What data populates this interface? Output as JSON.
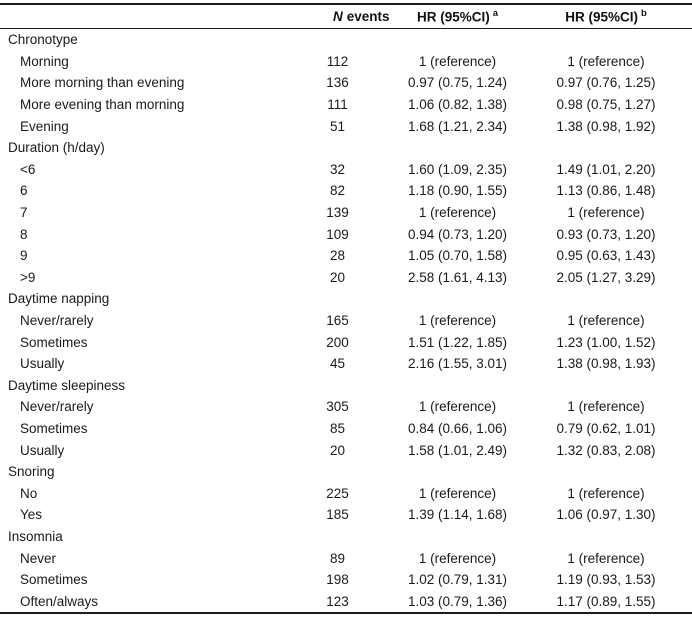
{
  "table": {
    "header": {
      "n_italic": "N",
      "n_rest": "events",
      "hr_label": "HR (95%CI)",
      "sup_a": "a",
      "sup_b": "b"
    },
    "sections": [
      {
        "label": "Chronotype",
        "rows": [
          {
            "label": "Morning",
            "n": "112",
            "hr_a": "1 (reference)",
            "hr_b": "1 (reference)"
          },
          {
            "label": "More morning than evening",
            "n": "136",
            "hr_a": "0.97 (0.75, 1.24)",
            "hr_b": "0.97 (0.76, 1.25)"
          },
          {
            "label": "More evening than morning",
            "n": "111",
            "hr_a": "1.06 (0.82, 1.38)",
            "hr_b": "0.98 (0.75, 1.27)"
          },
          {
            "label": "Evening",
            "n": "51",
            "hr_a": "1.68 (1.21, 2.34)",
            "hr_b": "1.38 (0.98, 1.92)"
          }
        ]
      },
      {
        "label": "Duration (h/day)",
        "rows": [
          {
            "label": "<6",
            "n": "32",
            "hr_a": "1.60 (1.09, 2.35)",
            "hr_b": "1.49 (1.01, 2.20)"
          },
          {
            "label": "6",
            "n": "82",
            "hr_a": "1.18 (0.90, 1.55)",
            "hr_b": "1.13 (0.86, 1.48)"
          },
          {
            "label": "7",
            "n": "139",
            "hr_a": "1 (reference)",
            "hr_b": "1 (reference)"
          },
          {
            "label": "8",
            "n": "109",
            "hr_a": "0.94 (0.73, 1.20)",
            "hr_b": "0.93 (0.73, 1.20)"
          },
          {
            "label": "9",
            "n": "28",
            "hr_a": "1.05 (0.70, 1.58)",
            "hr_b": "0.95 (0.63, 1.43)"
          },
          {
            "label": ">9",
            "n": "20",
            "hr_a": "2.58 (1.61, 4.13)",
            "hr_b": "2.05 (1.27, 3.29)"
          }
        ]
      },
      {
        "label": "Daytime napping",
        "rows": [
          {
            "label": "Never/rarely",
            "n": "165",
            "hr_a": "1 (reference)",
            "hr_b": "1 (reference)"
          },
          {
            "label": "Sometimes",
            "n": "200",
            "hr_a": "1.51 (1.22, 1.85)",
            "hr_b": "1.23 (1.00, 1.52)"
          },
          {
            "label": "Usually",
            "n": "45",
            "hr_a": "2.16 (1.55, 3.01)",
            "hr_b": "1.38 (0.98, 1.93)"
          }
        ]
      },
      {
        "label": "Daytime sleepiness",
        "rows": [
          {
            "label": "Never/rarely",
            "n": "305",
            "hr_a": "1 (reference)",
            "hr_b": "1 (reference)"
          },
          {
            "label": "Sometimes",
            "n": "85",
            "hr_a": "0.84 (0.66, 1.06)",
            "hr_b": "0.79 (0.62, 1.01)"
          },
          {
            "label": "Usually",
            "n": "20",
            "hr_a": "1.58 (1.01, 2.49)",
            "hr_b": "1.32 (0.83, 2.08)"
          }
        ]
      },
      {
        "label": "Snoring",
        "rows": [
          {
            "label": "No",
            "n": "225",
            "hr_a": "1 (reference)",
            "hr_b": "1 (reference)"
          },
          {
            "label": "Yes",
            "n": "185",
            "hr_a": "1.39 (1.14, 1.68)",
            "hr_b": "1.06 (0.97, 1.30)"
          }
        ]
      },
      {
        "label": "Insomnia",
        "rows": [
          {
            "label": "Never",
            "n": "89",
            "hr_a": "1 (reference)",
            "hr_b": "1 (reference)"
          },
          {
            "label": "Sometimes",
            "n": "198",
            "hr_a": "1.02 (0.79, 1.31)",
            "hr_b": "1.19 (0.93, 1.53)"
          },
          {
            "label": "Often/always",
            "n": "123",
            "hr_a": "1.03 (0.79, 1.36)",
            "hr_b": "1.17 (0.89, 1.55)"
          }
        ]
      }
    ]
  },
  "colors": {
    "background": "#ffffff",
    "text": "#1a1a1a",
    "rule": "#1c1c1c"
  }
}
